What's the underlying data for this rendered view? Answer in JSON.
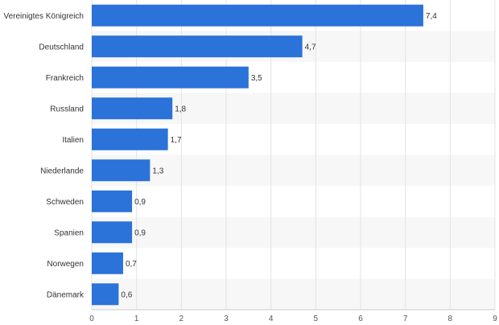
{
  "chart_data": {
    "type": "bar",
    "orientation": "horizontal",
    "title": "",
    "xlabel": "",
    "ylabel": "",
    "categories": [
      "Vereinigtes Königreich",
      "Deutschland",
      "Frankreich",
      "Russland",
      "Italien",
      "Niederlande",
      "Schweden",
      "Spanien",
      "Norwegen",
      "Dänemark"
    ],
    "values": [
      7.4,
      4.7,
      3.5,
      1.8,
      1.7,
      1.3,
      0.9,
      0.9,
      0.7,
      0.6
    ],
    "value_labels": [
      "7,4",
      "4,7",
      "3,5",
      "1,8",
      "1,7",
      "1,3",
      "0,9",
      "0,9",
      "0,7",
      "0,6"
    ],
    "xlim": [
      0,
      9
    ],
    "x_ticks": [
      0,
      1,
      2,
      3,
      4,
      5,
      6,
      7,
      8,
      9
    ],
    "grid": true,
    "legend": "none",
    "bar_color": "#2b72d9"
  }
}
